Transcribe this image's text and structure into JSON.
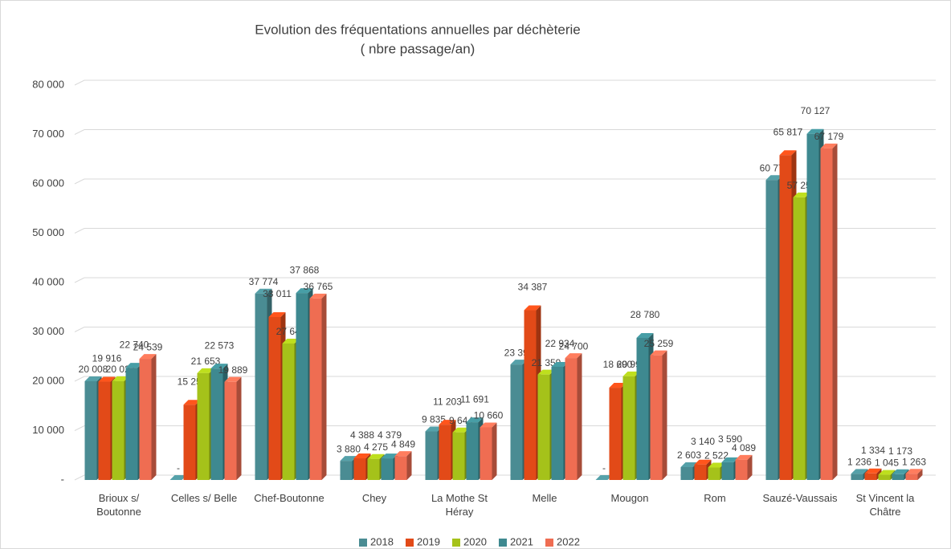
{
  "chart_data": {
    "type": "bar3d",
    "title": "Evolution des fréquentations annuelles par déchèterie",
    "subtitle": "( nbre passage/an)",
    "categories": [
      "Brioux s/ Boutonne",
      "Celles s/ Belle",
      "Chef-Boutonne",
      "Chey",
      "La Mothe St Héray",
      "Melle",
      "Mougon",
      "Rom",
      "Sauzé-Vaussais",
      "St Vincent la Châtre"
    ],
    "series": [
      {
        "name": "2018",
        "color": "#4a8c93",
        "values": [
          20008,
          0,
          37774,
          3880,
          9835,
          23394,
          0,
          2603,
          60778,
          1236
        ],
        "value_labels": [
          "20 008",
          "-",
          "37 774",
          "3 880",
          "9 835",
          "23 394",
          "-",
          "2 603",
          "60 778",
          "1 236"
        ]
      },
      {
        "name": "2019",
        "color": "#e24a18",
        "values": [
          19916,
          15251,
          33011,
          4388,
          11203,
          34387,
          18690,
          3140,
          65817,
          1334
        ],
        "value_labels": [
          "19 916",
          "15 251",
          "33 011",
          "4 388",
          "11 203",
          "34 387",
          "18 690",
          "3 140",
          "65 817",
          "1 334"
        ]
      },
      {
        "name": "2020",
        "color": "#a5c21a",
        "values": [
          20027,
          21653,
          27647,
          4275,
          9644,
          21359,
          20993,
          2522,
          57251,
          1045
        ],
        "value_labels": [
          "20 027",
          "21 653",
          "27 647",
          "4 275",
          "9 644",
          "21 359",
          "20 993",
          "2 522",
          "57 251",
          "1 045"
        ]
      },
      {
        "name": "2021",
        "color": "#3e8990",
        "values": [
          22740,
          22573,
          37868,
          4379,
          11691,
          22934,
          28780,
          3590,
          70127,
          1173
        ],
        "value_labels": [
          "22 740",
          "22 573",
          "37 868",
          "4 379",
          "11 691",
          "22 934",
          "28 780",
          "3 590",
          "70 127",
          "1 173"
        ]
      },
      {
        "name": "2022",
        "color": "#ef6d52",
        "values": [
          24539,
          19889,
          36765,
          4849,
          10660,
          24700,
          25259,
          4089,
          67179,
          1263
        ],
        "value_labels": [
          "24 539",
          "19 889",
          "36 765",
          "4 849",
          "10 660",
          "24 700",
          "25 259",
          "4 089",
          "67 179",
          "1 263"
        ]
      }
    ],
    "ylim": [
      0,
      80000
    ],
    "yticks": [
      {
        "value": 0,
        "label": "-"
      },
      {
        "value": 10000,
        "label": "10 000"
      },
      {
        "value": 20000,
        "label": "20 000"
      },
      {
        "value": 30000,
        "label": "30 000"
      },
      {
        "value": 40000,
        "label": "40 000"
      },
      {
        "value": 50000,
        "label": "50 000"
      },
      {
        "value": 60000,
        "label": "60 000"
      },
      {
        "value": 70000,
        "label": "70 000"
      },
      {
        "value": 80000,
        "label": "80 000"
      }
    ],
    "grid": true,
    "legend": "bottom"
  }
}
